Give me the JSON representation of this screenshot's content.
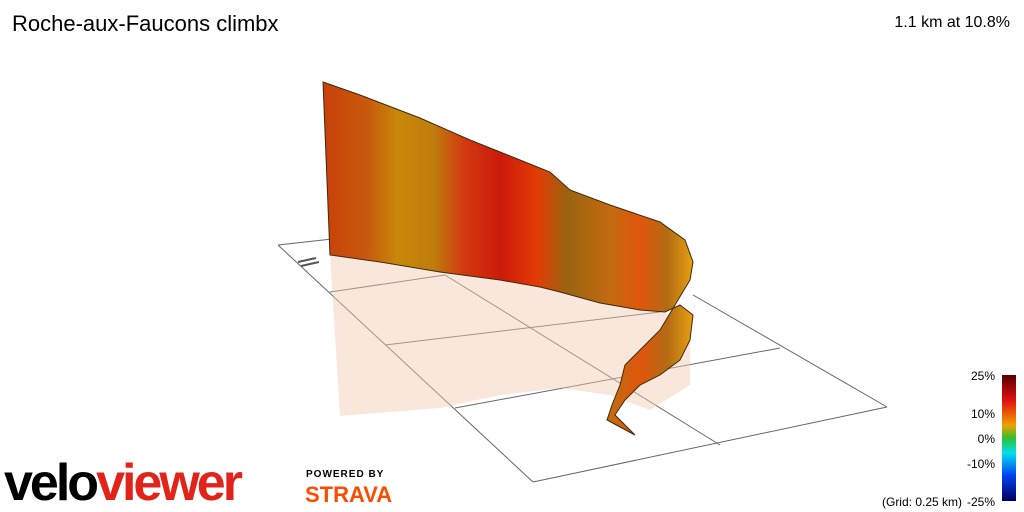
{
  "header": {
    "title": "Roche-aux-Faucons climbx",
    "summary": "1.1 km at 10.8%"
  },
  "legend": {
    "labels": [
      "25%",
      "10%",
      "0%",
      "-10%",
      "-25%"
    ],
    "grid_note": "(Grid: 0.25 km)"
  },
  "branding": {
    "logo_part1": "velo",
    "logo_part2": "viewer",
    "powered_by": "POWERED BY",
    "partner": "STRAVA"
  }
}
